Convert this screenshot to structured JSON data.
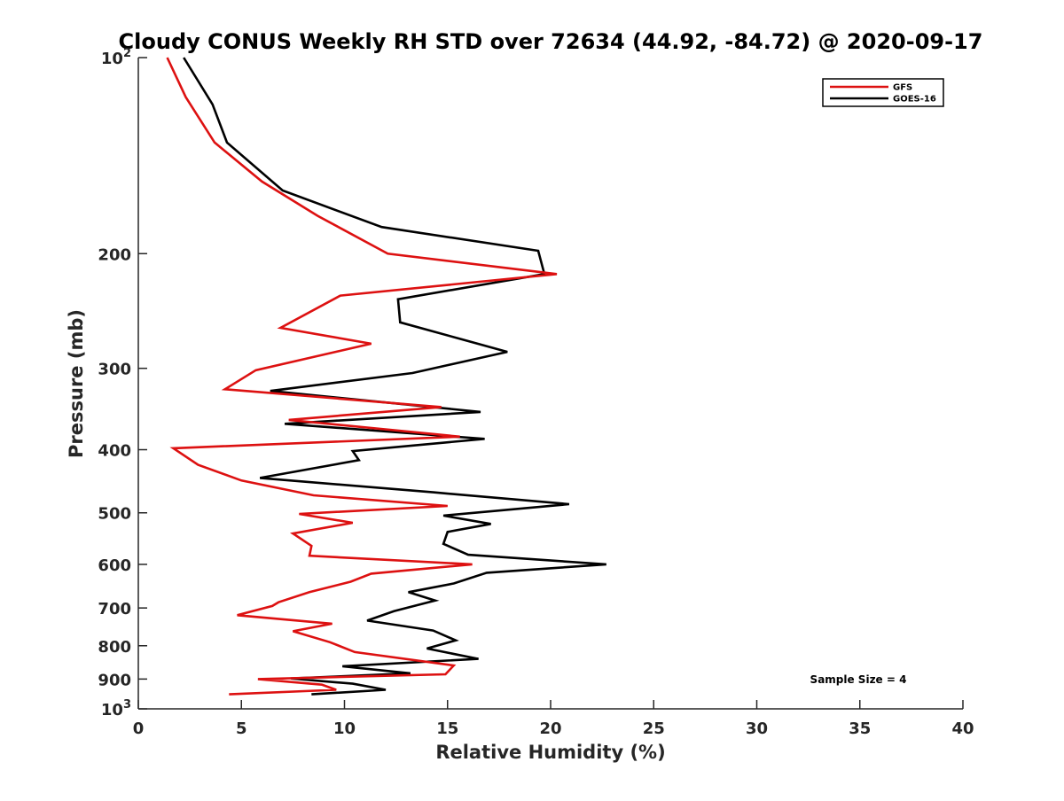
{
  "chart_data": {
    "type": "line",
    "title": "Cloudy CONUS Weekly RH STD over 72634 (44.92, -84.72) @ 2020-09-17",
    "xlabel": "Relative Humidity (%)",
    "ylabel": "Pressure (mb)",
    "xlim": [
      0,
      40
    ],
    "ylim": [
      100,
      1000
    ],
    "y_scale": "log",
    "y_reversed": true,
    "grid": false,
    "legend_position": "top-right",
    "x_ticks": [
      0,
      5,
      10,
      15,
      20,
      25,
      30,
      35,
      40
    ],
    "x_tick_labels": [
      "0",
      "5",
      "10",
      "15",
      "20",
      "25",
      "30",
      "35",
      "40"
    ],
    "y_ticks": [
      100,
      200,
      300,
      400,
      500,
      600,
      700,
      800,
      900,
      1000
    ],
    "y_tick_labels": [
      {
        "base": "10",
        "exp": "2"
      },
      {
        "base": "200",
        "exp": ""
      },
      {
        "base": "300",
        "exp": ""
      },
      {
        "base": "400",
        "exp": ""
      },
      {
        "base": "500",
        "exp": ""
      },
      {
        "base": "600",
        "exp": ""
      },
      {
        "base": "700",
        "exp": ""
      },
      {
        "base": "800",
        "exp": ""
      },
      {
        "base": "900",
        "exp": ""
      },
      {
        "base": "10",
        "exp": "3"
      }
    ],
    "annotation": "Sample Size = 4",
    "series": [
      {
        "name": "GFS",
        "color": "#dd1111",
        "points": [
          [
            1.4,
            100
          ],
          [
            2.3,
            115
          ],
          [
            3.7,
            135
          ],
          [
            6.0,
            155
          ],
          [
            8.7,
            175
          ],
          [
            12.1,
            200
          ],
          [
            20.3,
            215
          ],
          [
            9.8,
            232
          ],
          [
            6.9,
            260
          ],
          [
            11.3,
            275
          ],
          [
            5.7,
            302
          ],
          [
            4.2,
            323
          ],
          [
            14.7,
            344
          ],
          [
            7.3,
            360
          ],
          [
            15.6,
            382
          ],
          [
            1.7,
            398
          ],
          [
            2.9,
            422
          ],
          [
            5.0,
            446
          ],
          [
            8.5,
            470
          ],
          [
            15.0,
            488
          ],
          [
            7.8,
            502
          ],
          [
            10.4,
            518
          ],
          [
            7.5,
            538
          ],
          [
            8.4,
            562
          ],
          [
            8.3,
            582
          ],
          [
            16.2,
            600
          ],
          [
            11.3,
            620
          ],
          [
            10.3,
            638
          ],
          [
            8.3,
            662
          ],
          [
            6.8,
            686
          ],
          [
            6.5,
            695
          ],
          [
            4.8,
            718
          ],
          [
            9.4,
            740
          ],
          [
            7.5,
            760
          ],
          [
            9.3,
            790
          ],
          [
            10.5,
            818
          ],
          [
            15.3,
            858
          ],
          [
            14.9,
            885
          ],
          [
            5.8,
            900
          ],
          [
            8.9,
            918
          ],
          [
            9.6,
            935
          ],
          [
            4.4,
            950
          ]
        ]
      },
      {
        "name": "GOES-16",
        "color": "#000000",
        "points": [
          [
            2.2,
            100
          ],
          [
            3.6,
            118
          ],
          [
            4.3,
            135
          ],
          [
            7.0,
            160
          ],
          [
            11.8,
            182
          ],
          [
            19.4,
            198
          ],
          [
            19.7,
            215
          ],
          [
            12.6,
            235
          ],
          [
            12.7,
            255
          ],
          [
            17.9,
            283
          ],
          [
            13.3,
            305
          ],
          [
            6.4,
            325
          ],
          [
            16.6,
            350
          ],
          [
            7.1,
            365
          ],
          [
            16.8,
            385
          ],
          [
            10.4,
            402
          ],
          [
            10.7,
            415
          ],
          [
            5.9,
            442
          ],
          [
            14.3,
            465
          ],
          [
            20.9,
            485
          ],
          [
            14.8,
            505
          ],
          [
            17.1,
            520
          ],
          [
            15.0,
            535
          ],
          [
            14.8,
            558
          ],
          [
            16.0,
            580
          ],
          [
            22.7,
            600
          ],
          [
            16.9,
            618
          ],
          [
            15.3,
            642
          ],
          [
            13.1,
            662
          ],
          [
            14.4,
            682
          ],
          [
            12.4,
            708
          ],
          [
            11.1,
            732
          ],
          [
            14.3,
            758
          ],
          [
            15.4,
            785
          ],
          [
            14.0,
            808
          ],
          [
            16.5,
            838
          ],
          [
            9.9,
            860
          ],
          [
            13.2,
            882
          ],
          [
            7.4,
            898
          ],
          [
            10.4,
            915
          ],
          [
            12.0,
            935
          ],
          [
            8.4,
            950
          ]
        ]
      }
    ]
  }
}
